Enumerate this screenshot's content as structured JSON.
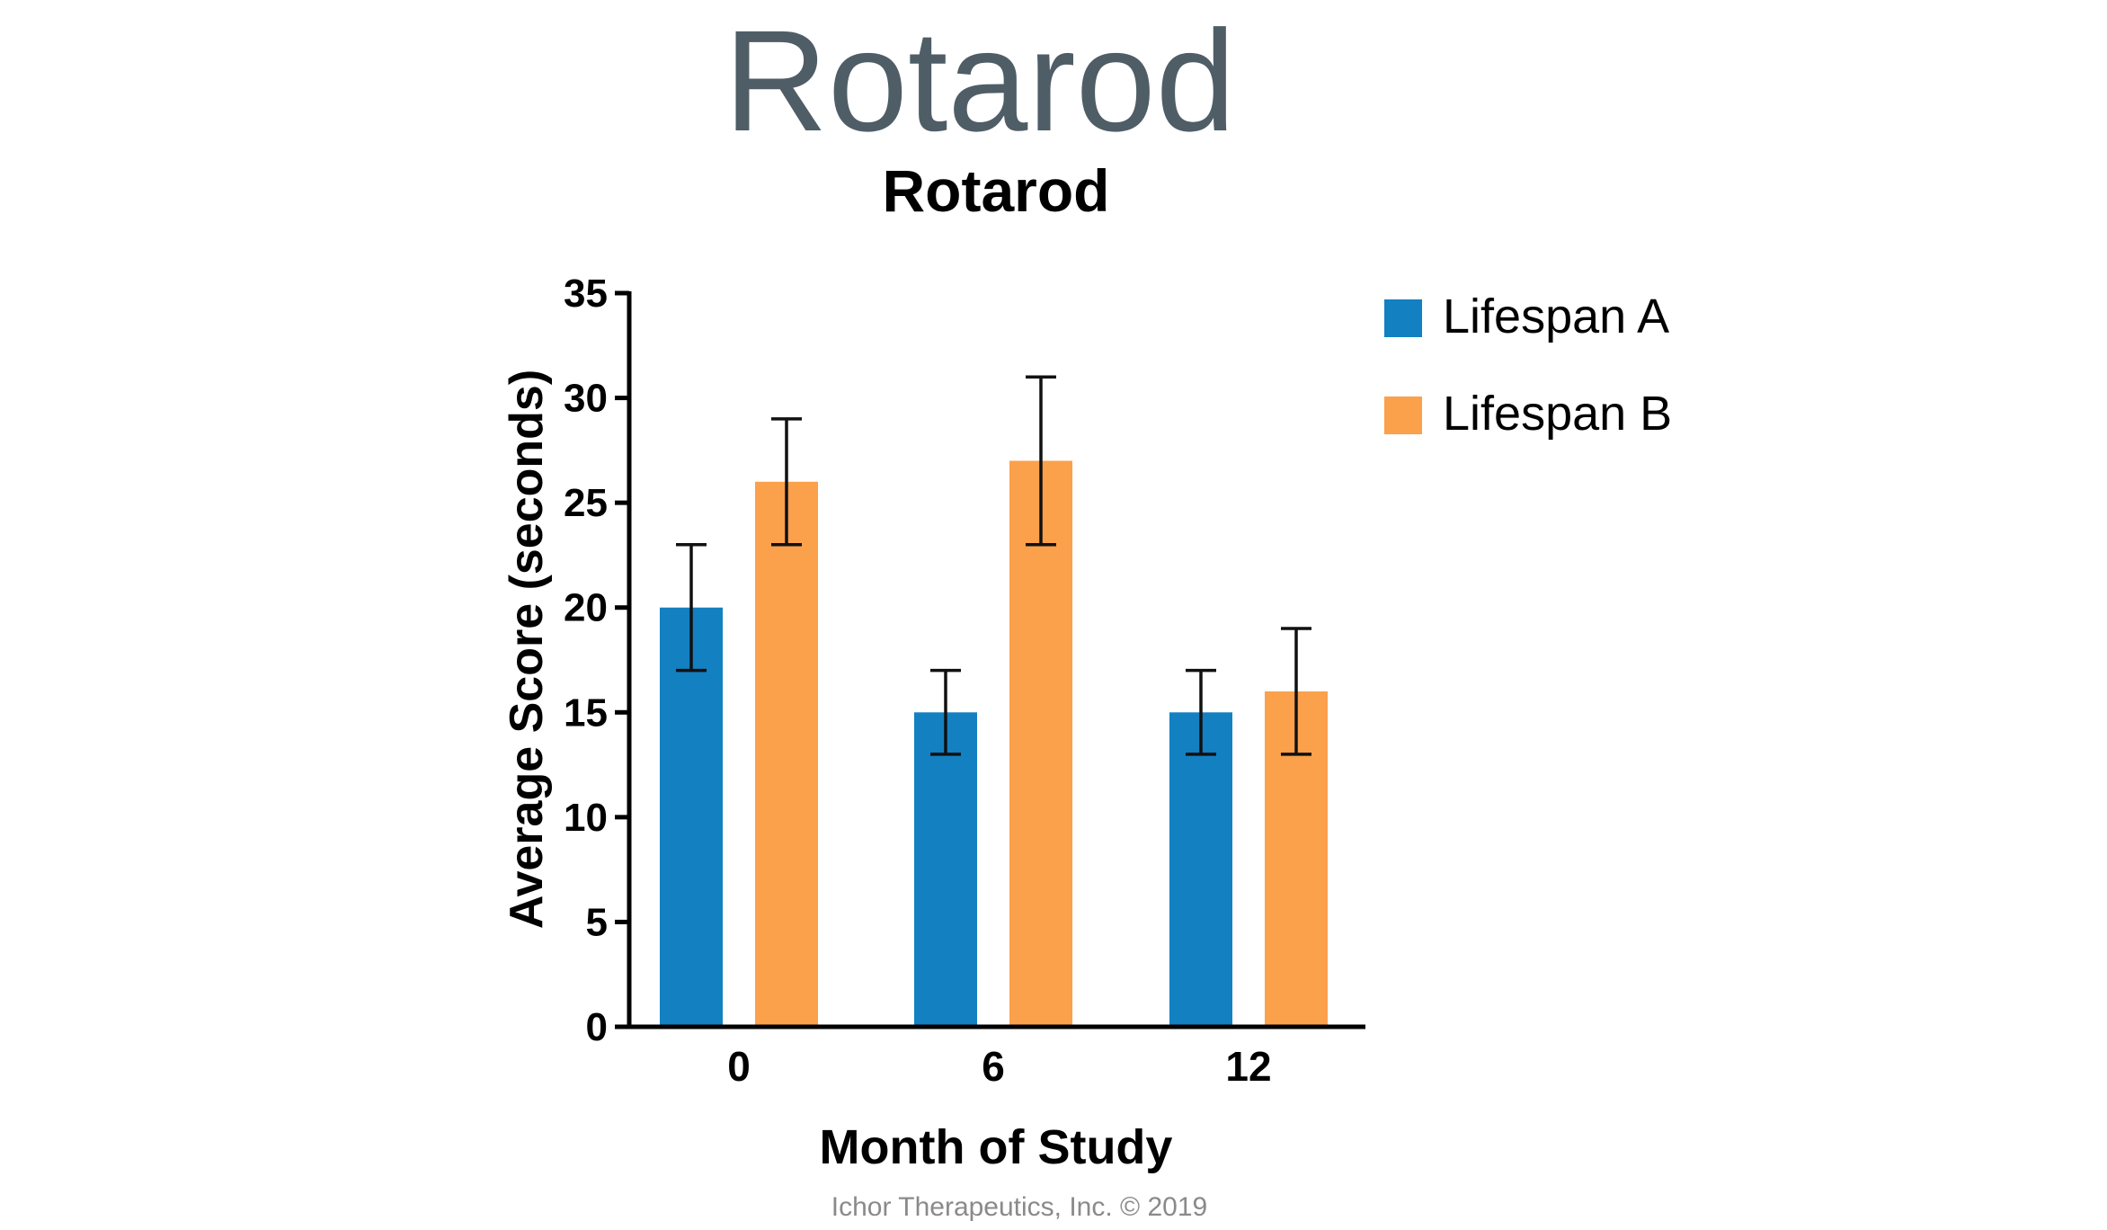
{
  "slide": {
    "title": "Rotarod",
    "footer": "Ichor Therapeutics, Inc. © 2019"
  },
  "chart_data": {
    "type": "bar",
    "title": "Rotarod",
    "xlabel": "Month of Study",
    "ylabel": "Average Score (seconds)",
    "categories": [
      "0",
      "6",
      "12"
    ],
    "series": [
      {
        "name": "Lifespan A",
        "color": "#1380c2",
        "values": [
          20,
          15,
          15
        ],
        "error": [
          3,
          2,
          2
        ]
      },
      {
        "name": "Lifespan B",
        "color": "#fba04b",
        "values": [
          26,
          27,
          16
        ],
        "error": [
          3,
          4,
          3
        ]
      }
    ],
    "ylim": [
      0,
      35
    ],
    "yticks": [
      "0",
      "5",
      "10",
      "15",
      "20",
      "25",
      "30",
      "35"
    ],
    "grid": false,
    "legend_position": "top-right"
  }
}
